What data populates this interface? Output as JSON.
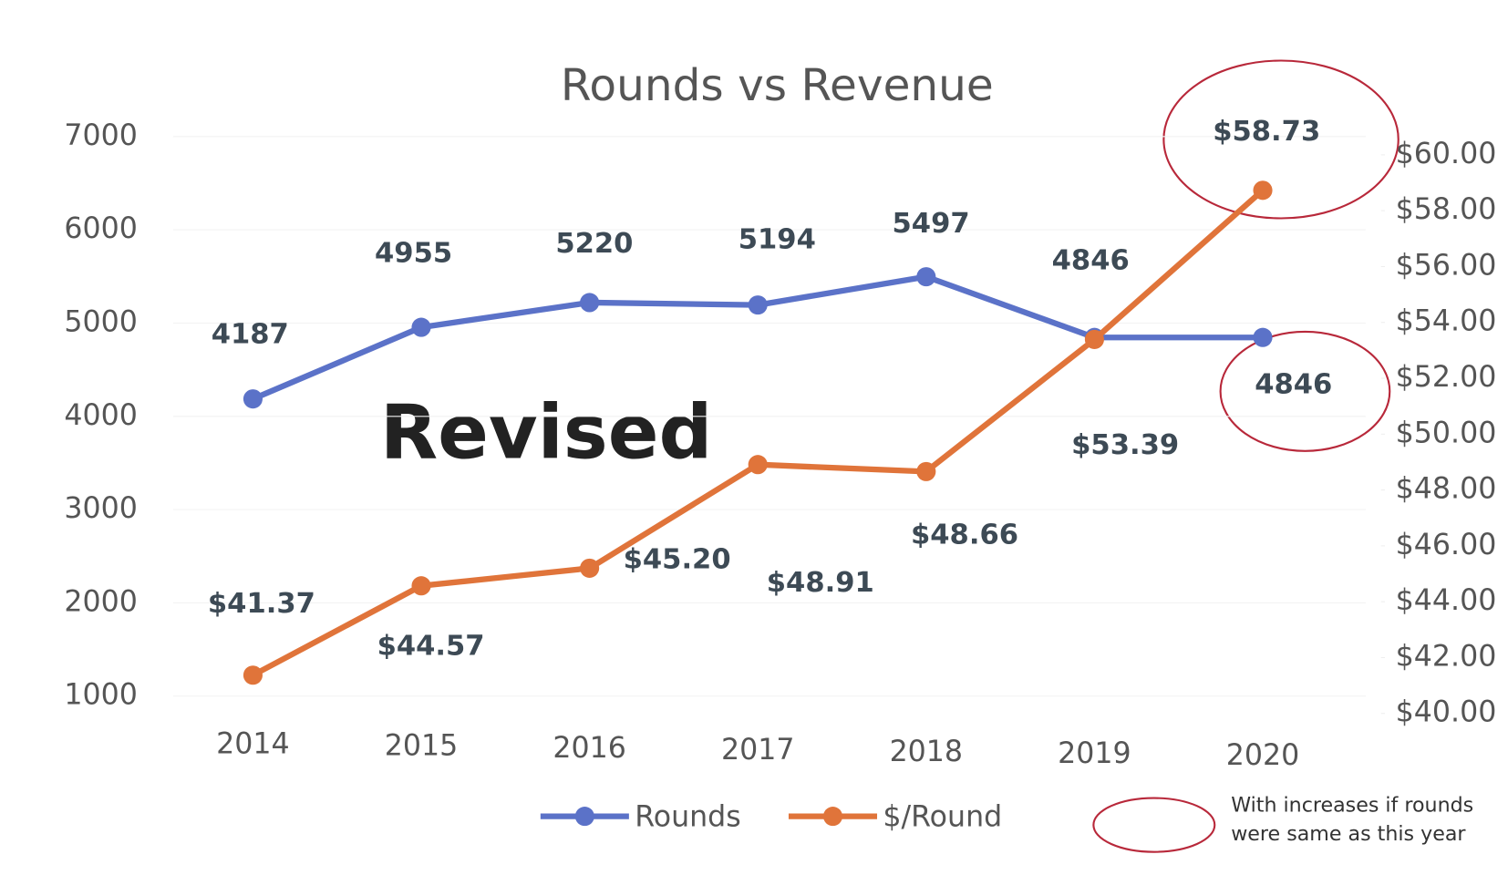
{
  "chart_data": {
    "type": "line",
    "title": "Rounds vs Revenue",
    "categories": [
      "2014",
      "2015",
      "2016",
      "2017",
      "2018",
      "2019",
      "2020"
    ],
    "series": [
      {
        "name": "Rounds",
        "color": "#5b72c8",
        "values": [
          4187,
          4955,
          5220,
          5194,
          5497,
          4846,
          4846
        ]
      },
      {
        "name": "$/Round",
        "color": "#e0743a",
        "axis": "y2",
        "values": [
          41.37,
          44.57,
          45.2,
          48.91,
          48.66,
          53.39,
          58.73
        ],
        "value_labels": [
          "$41.37",
          "$44.57",
          "$45.20",
          "$48.91",
          "$48.66",
          "$53.39",
          "$58.73"
        ]
      }
    ],
    "ylim": [
      1000,
      7000
    ],
    "yticks": [
      1000,
      2000,
      3000,
      4000,
      5000,
      6000,
      7000
    ],
    "y2lim": [
      40,
      60
    ],
    "y2ticks": [
      {
        "value": 40,
        "label": "$40.00"
      },
      {
        "value": 42,
        "label": "$42.00"
      },
      {
        "value": 44,
        "label": "$44.00"
      },
      {
        "value": 46,
        "label": "$46.00"
      },
      {
        "value": 48,
        "label": "$48.00"
      },
      {
        "value": 50,
        "label": "$50.00"
      },
      {
        "value": 52,
        "label": "$52.00"
      },
      {
        "value": 54,
        "label": "$54.00"
      },
      {
        "value": 56,
        "label": "$56.00"
      },
      {
        "value": 58,
        "label": "$58.00"
      },
      {
        "value": 60,
        "label": "$60.00"
      }
    ],
    "annotation": "Revised",
    "note": [
      "With increases if rounds",
      "were same as this year"
    ]
  }
}
